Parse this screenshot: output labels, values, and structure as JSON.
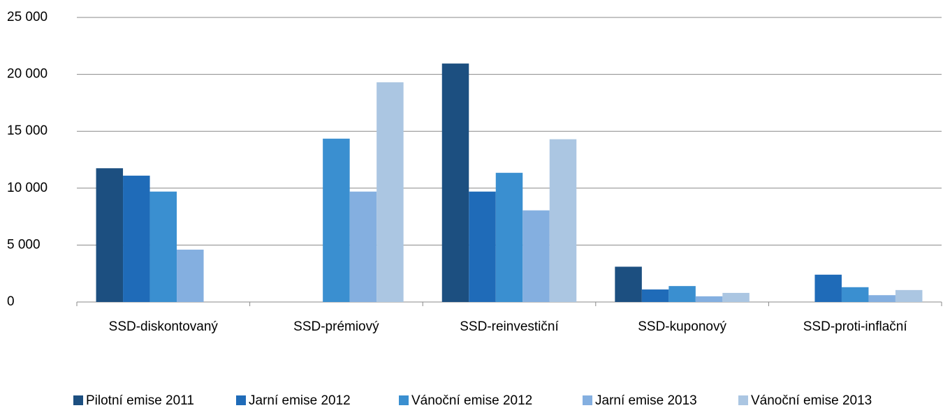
{
  "chart_data": {
    "type": "bar",
    "categories": [
      "SSD-diskontovaný",
      "SSD-prémiový",
      "SSD-reinvestiční",
      "SSD-kuponový",
      "SSD-proti-inflační"
    ],
    "series": [
      {
        "name": "Pilotní emise 2011",
        "color": "#1c4f80",
        "values": [
          11750,
          null,
          20950,
          3100,
          null
        ]
      },
      {
        "name": "Jarní emise 2012",
        "color": "#1f6bb8",
        "values": [
          11100,
          null,
          9700,
          1100,
          2400
        ]
      },
      {
        "name": "Vánoční emise 2012",
        "color": "#3a8fd0",
        "values": [
          9700,
          14350,
          11350,
          1400,
          1300
        ]
      },
      {
        "name": "Jarní emise 2013",
        "color": "#84afe0",
        "values": [
          4600,
          9700,
          8050,
          500,
          600
        ]
      },
      {
        "name": "Vánoční emise 2013",
        "color": "#abc6e2",
        "values": [
          null,
          19300,
          14300,
          800,
          1050
        ]
      }
    ],
    "ylim": [
      0,
      25000
    ],
    "yticks": [
      0,
      {
        "value": 5000,
        "label": "5 000"
      },
      {
        "value": 10000,
        "label": "10 000"
      },
      {
        "value": 15000,
        "label": "15 000"
      },
      {
        "value": 20000,
        "label": "20 000"
      },
      {
        "value": 25000,
        "label": "25 000"
      }
    ],
    "grid": true,
    "legend": "bottom"
  }
}
